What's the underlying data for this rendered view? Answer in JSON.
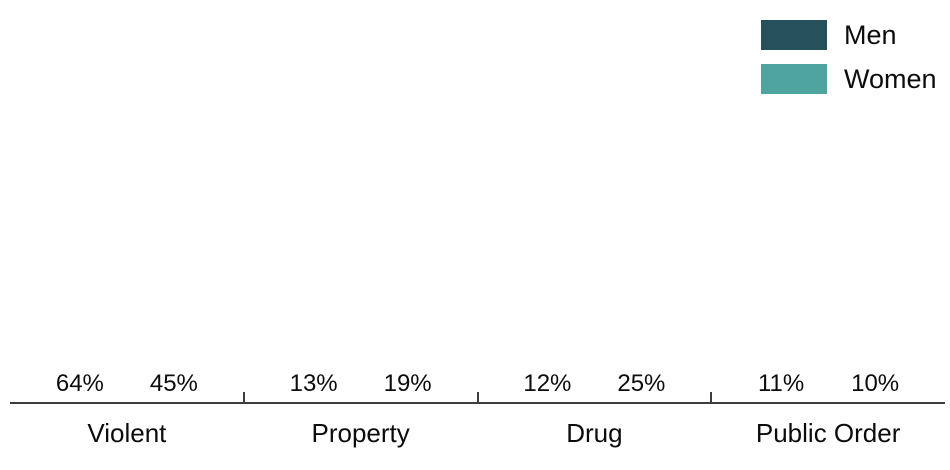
{
  "chart_data": {
    "type": "bar",
    "title": "",
    "xlabel": "",
    "ylabel": "",
    "value_suffix": "%",
    "categories": [
      "Violent",
      "Property",
      "Drug",
      "Public Order"
    ],
    "series": [
      {
        "name": "Men",
        "color": "#26505a",
        "values": [
          64,
          13,
          12,
          11
        ]
      },
      {
        "name": "Women",
        "color": "#4fa4a0",
        "values": [
          45,
          19,
          25,
          10
        ]
      }
    ],
    "ylim": [
      0,
      70
    ],
    "grid": false,
    "legend_position": "top-right",
    "axis_color": "#3d3d3d",
    "label_color": "#0c0c0c",
    "background": "#ffffff"
  }
}
